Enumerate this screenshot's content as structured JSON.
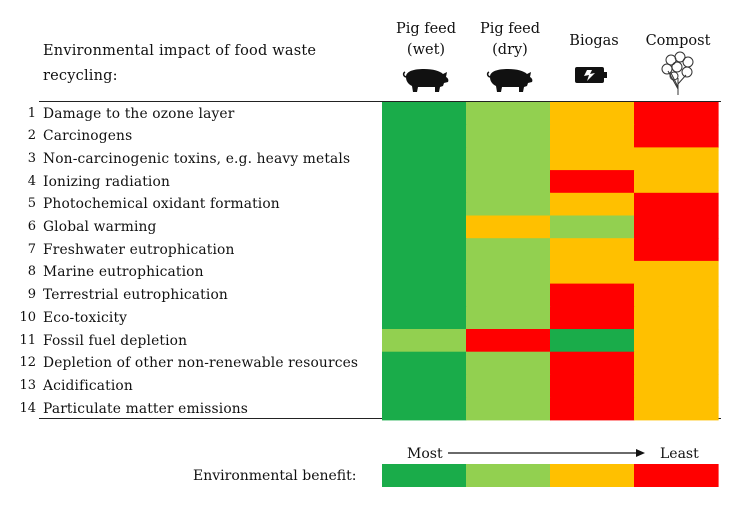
{
  "chart_data": {
    "type": "heatmap",
    "title": "Environmental impact of food waste recycling:",
    "columns": [
      {
        "label_line1": "Pig feed",
        "label_line2": "(wet)",
        "icon": "pig-icon"
      },
      {
        "label_line1": "Pig feed",
        "label_line2": "(dry)",
        "icon": "pig-icon"
      },
      {
        "label_line1": "Biogas",
        "label_line2": "",
        "icon": "battery-icon"
      },
      {
        "label_line1": "Compost",
        "label_line2": "",
        "icon": "plant-icon"
      }
    ],
    "rows": [
      {
        "num": "1",
        "label": "Damage to the ozone layer"
      },
      {
        "num": "2",
        "label": "Carcinogens"
      },
      {
        "num": "3",
        "label": "Non-carcinogenic toxins, e.g. heavy metals"
      },
      {
        "num": "4",
        "label": "Ionizing radiation"
      },
      {
        "num": "5",
        "label": "Photochemical oxidant formation"
      },
      {
        "num": "6",
        "label": "Global warming"
      },
      {
        "num": "7",
        "label": "Freshwater eutrophication"
      },
      {
        "num": "8",
        "label": "Marine eutrophication"
      },
      {
        "num": "9",
        "label": "Terrestrial eutrophication"
      },
      {
        "num": "10",
        "label": "Eco-toxicity"
      },
      {
        "num": "11",
        "label": "Fossil fuel depletion"
      },
      {
        "num": "12",
        "label": "Depletion of other non-renewable resources"
      },
      {
        "num": "13",
        "label": "Acidification"
      },
      {
        "num": "14",
        "label": "Particulate matter emissions"
      }
    ],
    "rank_scale": "1 = most environmental benefit, 4 = least",
    "ranks": [
      [
        1,
        2,
        3,
        4
      ],
      [
        1,
        2,
        3,
        4
      ],
      [
        1,
        2,
        3,
        3
      ],
      [
        1,
        2,
        4,
        3
      ],
      [
        1,
        2,
        3,
        4
      ],
      [
        1,
        3,
        2,
        4
      ],
      [
        1,
        2,
        3,
        4
      ],
      [
        1,
        2,
        3,
        3
      ],
      [
        1,
        2,
        4,
        3
      ],
      [
        1,
        2,
        4,
        3
      ],
      [
        2,
        4,
        1,
        3
      ],
      [
        1,
        2,
        4,
        3
      ],
      [
        1,
        2,
        4,
        3
      ],
      [
        1,
        2,
        4,
        3
      ]
    ],
    "colors": {
      "1": "#1aac4a",
      "2": "#92d050",
      "3": "#ffc000",
      "4": "#ff0000"
    },
    "legend": {
      "label": "Environmental benefit:",
      "most": "Most",
      "least": "Least",
      "ranks": [
        1,
        2,
        3,
        4
      ]
    }
  }
}
